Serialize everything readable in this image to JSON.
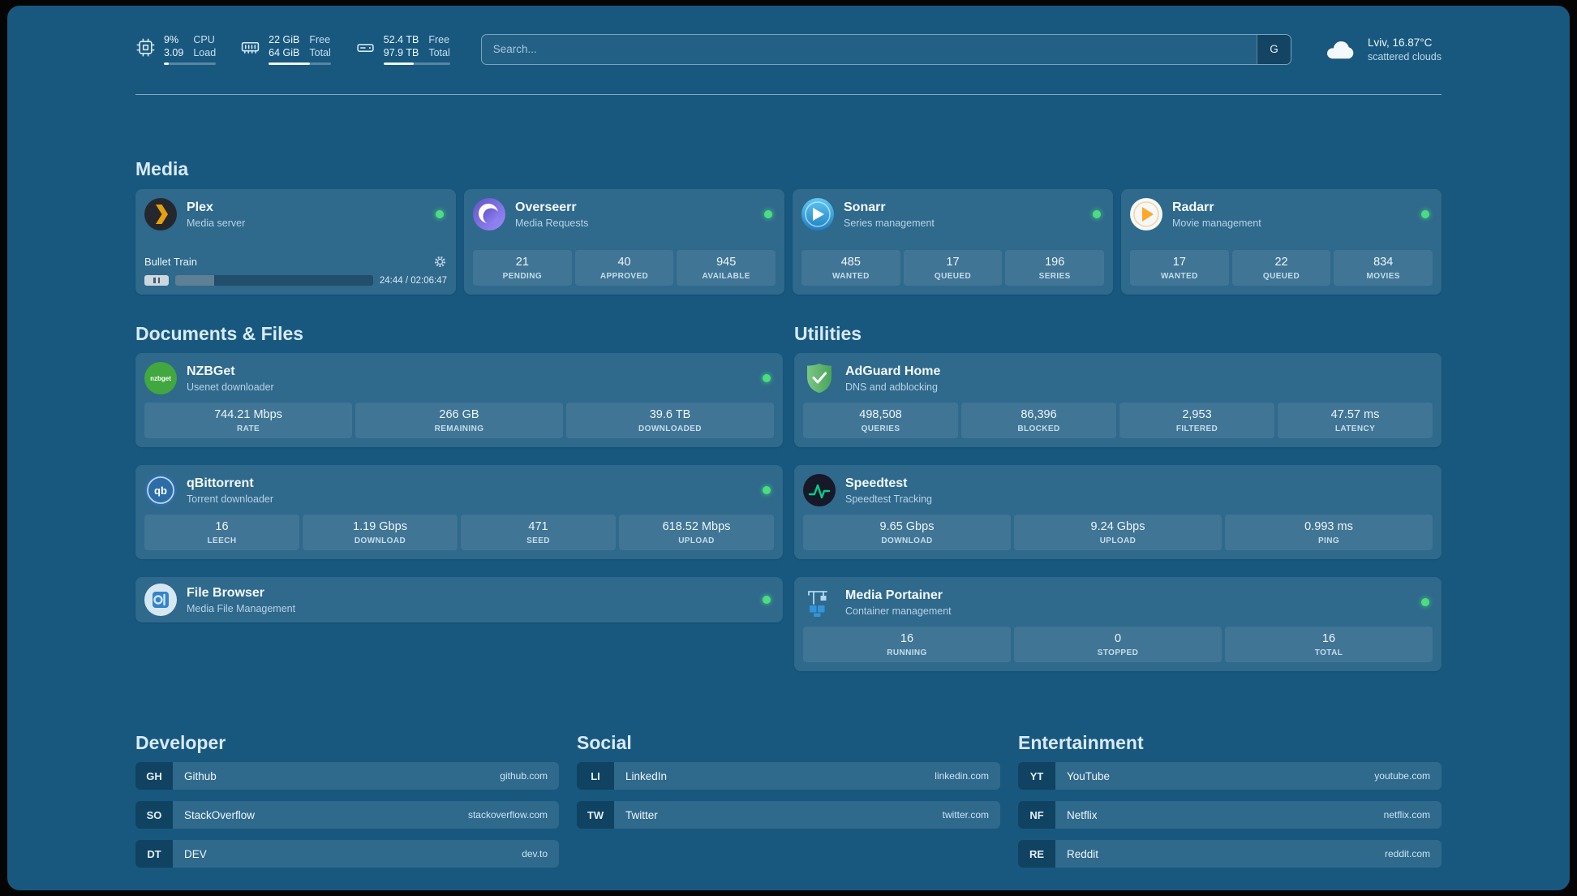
{
  "theme": {
    "panel_bg": "#18587f",
    "card_bg": "rgba(255,255,255,0.10)",
    "status_online": "#4ade80",
    "heading_color": "#d7eaf6"
  },
  "top_bar": {
    "resources": [
      {
        "icon": "cpu-icon",
        "rows": [
          {
            "value": "9%",
            "label": "CPU"
          },
          {
            "value": "3.09",
            "label": "Load"
          }
        ],
        "bar_pct": 9
      },
      {
        "icon": "memory-icon",
        "rows": [
          {
            "value": "22 GiB",
            "label": "Free"
          },
          {
            "value": "64 GiB",
            "label": "Total"
          }
        ],
        "bar_pct": 66
      },
      {
        "icon": "disk-icon",
        "rows": [
          {
            "value": "52.4 TB",
            "label": "Free"
          },
          {
            "value": "97.9 TB",
            "label": "Total"
          }
        ],
        "bar_pct": 46
      }
    ],
    "search": {
      "placeholder": "Search...",
      "button_label": "G"
    },
    "weather": {
      "location": "Lviv, 16.87°C",
      "condition": "scattered clouds"
    }
  },
  "sections": {
    "media": {
      "title": "Media",
      "services": [
        {
          "name": "Plex",
          "desc": "Media server",
          "status": "online",
          "now_playing": {
            "title": "Bullet Train",
            "time": "24:44 / 02:06:47",
            "progress_pct": 19.5
          }
        },
        {
          "name": "Overseerr",
          "desc": "Media Requests",
          "status": "online",
          "stats": [
            {
              "value": "21",
              "label": "PENDING"
            },
            {
              "value": "40",
              "label": "APPROVED"
            },
            {
              "value": "945",
              "label": "AVAILABLE"
            }
          ]
        },
        {
          "name": "Sonarr",
          "desc": "Series management",
          "status": "online",
          "stats": [
            {
              "value": "485",
              "label": "WANTED"
            },
            {
              "value": "17",
              "label": "QUEUED"
            },
            {
              "value": "196",
              "label": "SERIES"
            }
          ]
        },
        {
          "name": "Radarr",
          "desc": "Movie management",
          "status": "online",
          "stats": [
            {
              "value": "17",
              "label": "WANTED"
            },
            {
              "value": "22",
              "label": "QUEUED"
            },
            {
              "value": "834",
              "label": "MOVIES"
            }
          ]
        }
      ]
    },
    "documents": {
      "title": "Documents & Files",
      "services": [
        {
          "name": "NZBGet",
          "desc": "Usenet downloader",
          "status": "online",
          "stats": [
            {
              "value": "744.21 Mbps",
              "label": "RATE"
            },
            {
              "value": "266 GB",
              "label": "REMAINING"
            },
            {
              "value": "39.6 TB",
              "label": "DOWNLOADED"
            }
          ]
        },
        {
          "name": "qBittorrent",
          "desc": "Torrent downloader",
          "status": "online",
          "stats": [
            {
              "value": "16",
              "label": "LEECH"
            },
            {
              "value": "1.19 Gbps",
              "label": "DOWNLOAD"
            },
            {
              "value": "471",
              "label": "SEED"
            },
            {
              "value": "618.52 Mbps",
              "label": "UPLOAD"
            }
          ]
        },
        {
          "name": "File Browser",
          "desc": "Media File Management",
          "status": "online",
          "stats": []
        }
      ]
    },
    "utilities": {
      "title": "Utilities",
      "services": [
        {
          "name": "AdGuard Home",
          "desc": "DNS and adblocking",
          "stats": [
            {
              "value": "498,508",
              "label": "QUERIES"
            },
            {
              "value": "86,396",
              "label": "BLOCKED"
            },
            {
              "value": "2,953",
              "label": "FILTERED"
            },
            {
              "value": "47.57 ms",
              "label": "LATENCY"
            }
          ]
        },
        {
          "name": "Speedtest",
          "desc": "Speedtest Tracking",
          "stats": [
            {
              "value": "9.65 Gbps",
              "label": "DOWNLOAD"
            },
            {
              "value": "9.24 Gbps",
              "label": "UPLOAD"
            },
            {
              "value": "0.993 ms",
              "label": "PING"
            }
          ]
        },
        {
          "name": "Media Portainer",
          "desc": "Container management",
          "status": "online",
          "stats": [
            {
              "value": "16",
              "label": "RUNNING"
            },
            {
              "value": "0",
              "label": "STOPPED"
            },
            {
              "value": "16",
              "label": "TOTAL"
            }
          ]
        }
      ]
    }
  },
  "bookmarks": {
    "groups": [
      {
        "title": "Developer",
        "items": [
          {
            "abbr": "GH",
            "name": "Github",
            "domain": "github.com"
          },
          {
            "abbr": "SO",
            "name": "StackOverflow",
            "domain": "stackoverflow.com"
          },
          {
            "abbr": "DT",
            "name": "DEV",
            "domain": "dev.to"
          }
        ]
      },
      {
        "title": "Social",
        "items": [
          {
            "abbr": "LI",
            "name": "LinkedIn",
            "domain": "linkedin.com"
          },
          {
            "abbr": "TW",
            "name": "Twitter",
            "domain": "twitter.com"
          }
        ]
      },
      {
        "title": "Entertainment",
        "items": [
          {
            "abbr": "YT",
            "name": "YouTube",
            "domain": "youtube.com"
          },
          {
            "abbr": "NF",
            "name": "Netflix",
            "domain": "netflix.com"
          },
          {
            "abbr": "RE",
            "name": "Reddit",
            "domain": "reddit.com"
          }
        ]
      }
    ]
  }
}
